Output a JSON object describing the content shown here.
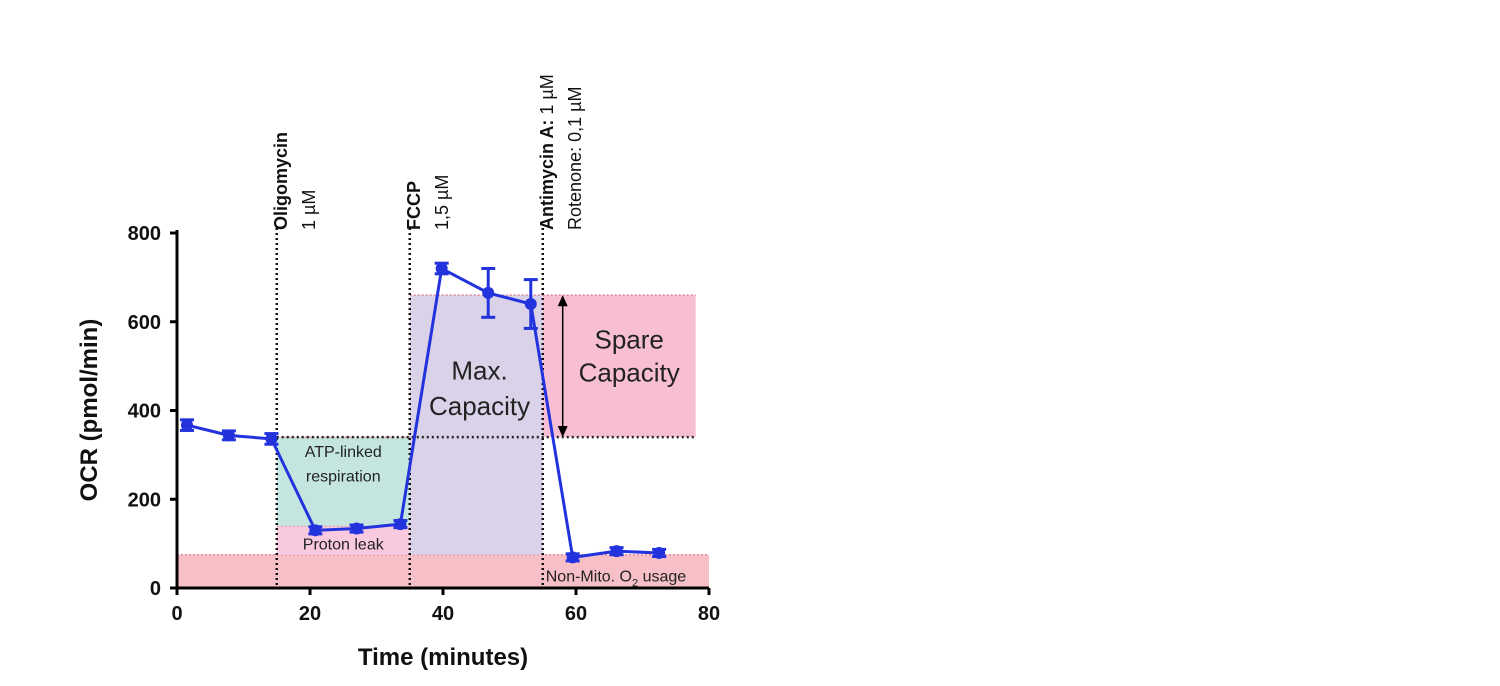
{
  "chart_data": {
    "type": "line",
    "xlabel": "Time (minutes)",
    "ylabel": "OCR (pmol/min)",
    "xlim": [
      0,
      80
    ],
    "ylim": [
      0,
      800
    ],
    "xticks": [
      0,
      20,
      40,
      60,
      80
    ],
    "yticks": [
      0,
      200,
      400,
      600,
      800
    ],
    "grid": false,
    "series": [
      {
        "color": "#2233dd",
        "x": [
          1.5,
          7.8,
          14.2,
          20.8,
          27.0,
          33.6,
          39.8,
          46.8,
          53.2,
          59.5,
          66.1,
          72.5
        ],
        "y": [
          367,
          344,
          336,
          130,
          134,
          144,
          720,
          665,
          640,
          69,
          83,
          79
        ],
        "error": [
          12,
          10,
          12,
          8,
          8,
          8,
          12,
          55,
          55,
          8,
          8,
          8
        ]
      }
    ],
    "injections": [
      {
        "x": 15,
        "name": "Oligomycin",
        "dose": "1 µM"
      },
      {
        "x": 35,
        "name": "FCCP",
        "dose": "1,5 µM"
      },
      {
        "x": 55,
        "name": "Antimycin A:",
        "dose": "1 µM",
        "dose2": "Rotenone: 0,1 µM"
      }
    ],
    "regions": [
      {
        "label": "Non-Mito. O",
        "sub": "2",
        "label_tail": " usage",
        "x": [
          0,
          80
        ],
        "y": [
          0,
          75
        ],
        "color": "#f6b8c0"
      },
      {
        "label": "Proton leak",
        "x": [
          15,
          35
        ],
        "y": [
          75,
          140
        ],
        "color": "#f8c3dc"
      },
      {
        "label": "ATP-linked",
        "label2": "respiration",
        "x": [
          15,
          35
        ],
        "y": [
          140,
          340
        ],
        "color": "#bfe3dd"
      },
      {
        "label": "Max.",
        "label2": "Capacity",
        "x": [
          35,
          55
        ],
        "y": [
          75,
          660
        ],
        "color": "#d5cde6"
      },
      {
        "label": "Spare",
        "label2": "Capacity",
        "x": [
          55,
          78
        ],
        "y": [
          340,
          660
        ],
        "color": "#f7b8cf"
      }
    ]
  }
}
